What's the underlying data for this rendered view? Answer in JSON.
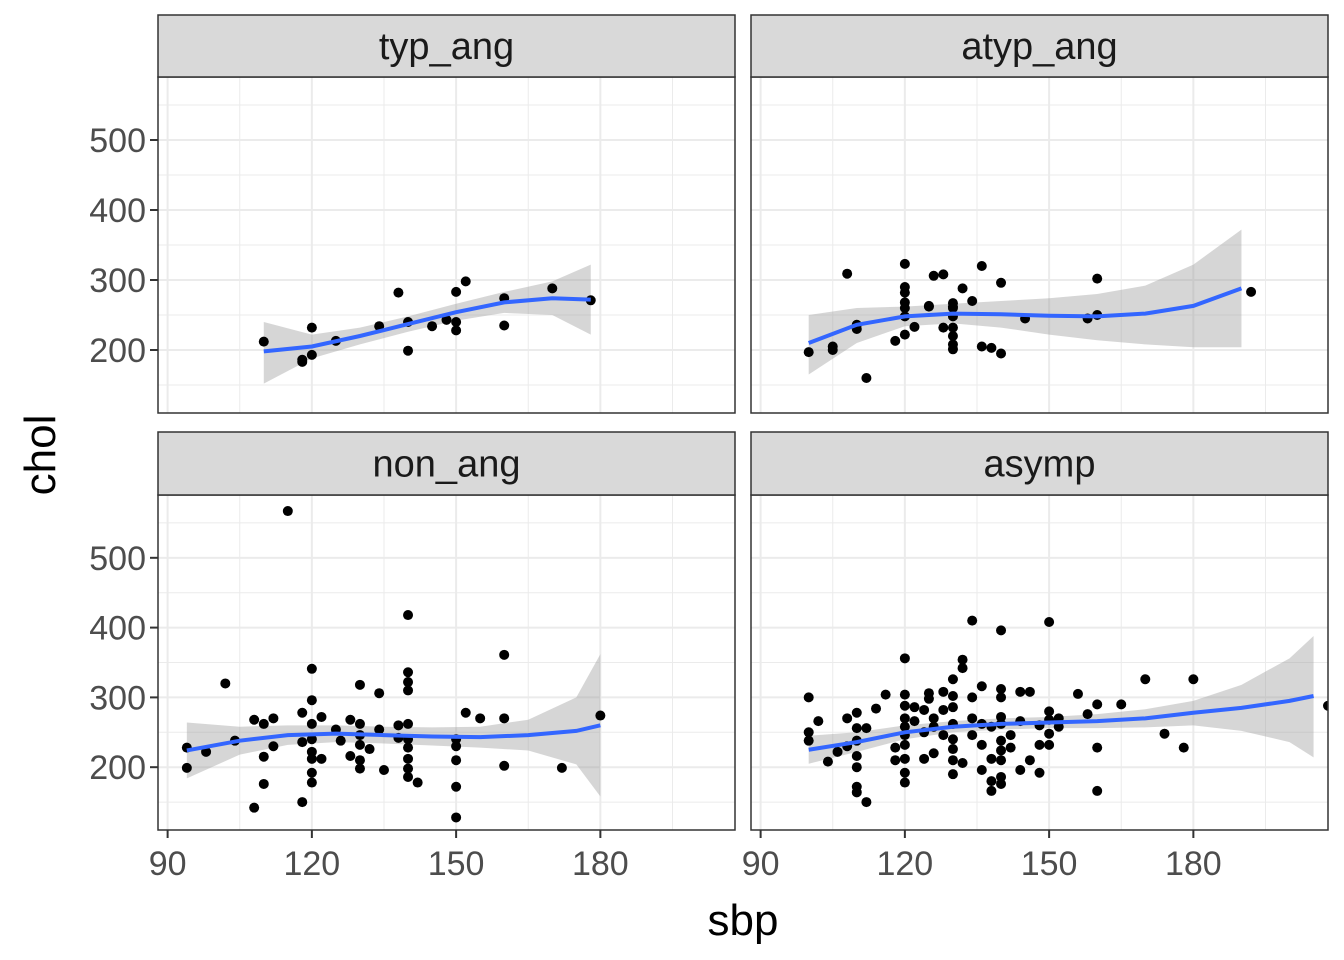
{
  "chart_data": {
    "type": "scatter",
    "xlabel": "sbp",
    "ylabel": "chol",
    "xlim": [
      88,
      208
    ],
    "ylim": [
      110,
      590
    ],
    "x_ticks": [
      "90",
      "120",
      "150",
      "180"
    ],
    "y_ticks": [
      "200",
      "300",
      "400",
      "500"
    ],
    "grid": true,
    "smoother": "loess with confidence band",
    "colors": {
      "points": "#000000",
      "smooth_line": "#3366FF",
      "band": "#999999",
      "strip": "#D9D9D9",
      "grid": "#EBEBEB"
    },
    "panels": [
      {
        "label": "typ_ang",
        "points": [
          [
            110,
            212
          ],
          [
            118,
            183
          ],
          [
            118,
            186
          ],
          [
            120,
            232
          ],
          [
            120,
            193
          ],
          [
            125,
            213
          ],
          [
            134,
            234
          ],
          [
            138,
            282
          ],
          [
            140,
            240
          ],
          [
            140,
            199
          ],
          [
            145,
            234
          ],
          [
            148,
            243
          ],
          [
            150,
            283
          ],
          [
            150,
            228
          ],
          [
            150,
            240
          ],
          [
            152,
            298
          ],
          [
            160,
            274
          ],
          [
            160,
            235
          ],
          [
            170,
            288
          ],
          [
            178,
            271
          ]
        ],
        "smooth": [
          [
            110,
            198
          ],
          [
            120,
            205
          ],
          [
            130,
            220
          ],
          [
            140,
            237
          ],
          [
            150,
            254
          ],
          [
            160,
            268
          ],
          [
            170,
            274
          ],
          [
            178,
            272
          ]
        ],
        "band": [
          [
            110,
            240,
            152
          ],
          [
            120,
            222,
            188
          ],
          [
            130,
            232,
            208
          ],
          [
            140,
            248,
            226
          ],
          [
            150,
            266,
            242
          ],
          [
            160,
            283,
            253
          ],
          [
            170,
            298,
            250
          ],
          [
            178,
            322,
            222
          ]
        ]
      },
      {
        "label": "atyp_ang",
        "points": [
          [
            100,
            197
          ],
          [
            105,
            200
          ],
          [
            105,
            205
          ],
          [
            108,
            309
          ],
          [
            110,
            230
          ],
          [
            110,
            236
          ],
          [
            112,
            160
          ],
          [
            118,
            213
          ],
          [
            120,
            323
          ],
          [
            120,
            290
          ],
          [
            120,
            282
          ],
          [
            120,
            268
          ],
          [
            120,
            260
          ],
          [
            120,
            248
          ],
          [
            120,
            222
          ],
          [
            122,
            233
          ],
          [
            125,
            262
          ],
          [
            125,
            263
          ],
          [
            126,
            306
          ],
          [
            128,
            308
          ],
          [
            128,
            232
          ],
          [
            130,
            267
          ],
          [
            130,
            262
          ],
          [
            130,
            260
          ],
          [
            130,
            248
          ],
          [
            130,
            232
          ],
          [
            130,
            220
          ],
          [
            130,
            208
          ],
          [
            130,
            201
          ],
          [
            132,
            288
          ],
          [
            134,
            270
          ],
          [
            136,
            320
          ],
          [
            136,
            205
          ],
          [
            138,
            203
          ],
          [
            140,
            296
          ],
          [
            140,
            195
          ],
          [
            145,
            245
          ],
          [
            158,
            245
          ],
          [
            160,
            302
          ],
          [
            160,
            250
          ],
          [
            192,
            283
          ]
        ],
        "smooth": [
          [
            100,
            210
          ],
          [
            110,
            236
          ],
          [
            120,
            248
          ],
          [
            130,
            252
          ],
          [
            140,
            251
          ],
          [
            150,
            249
          ],
          [
            160,
            248
          ],
          [
            170,
            252
          ],
          [
            180,
            263
          ],
          [
            190,
            288
          ]
        ],
        "band": [
          [
            100,
            250,
            165
          ],
          [
            110,
            260,
            210
          ],
          [
            120,
            262,
            234
          ],
          [
            130,
            266,
            238
          ],
          [
            140,
            270,
            232
          ],
          [
            150,
            274,
            222
          ],
          [
            160,
            280,
            214
          ],
          [
            170,
            292,
            208
          ],
          [
            180,
            322,
            204
          ],
          [
            190,
            372,
            204
          ]
        ]
      },
      {
        "label": "non_ang",
        "points": [
          [
            94,
            228
          ],
          [
            94,
            199
          ],
          [
            98,
            222
          ],
          [
            102,
            320
          ],
          [
            104,
            238
          ],
          [
            108,
            142
          ],
          [
            108,
            268
          ],
          [
            110,
            176
          ],
          [
            110,
            215
          ],
          [
            110,
            262
          ],
          [
            112,
            270
          ],
          [
            112,
            230
          ],
          [
            115,
            567
          ],
          [
            118,
            278
          ],
          [
            118,
            150
          ],
          [
            118,
            236
          ],
          [
            120,
            341
          ],
          [
            120,
            296
          ],
          [
            120,
            262
          ],
          [
            120,
            240
          ],
          [
            120,
            222
          ],
          [
            120,
            212
          ],
          [
            120,
            192
          ],
          [
            120,
            178
          ],
          [
            122,
            272
          ],
          [
            122,
            212
          ],
          [
            125,
            254
          ],
          [
            126,
            238
          ],
          [
            128,
            268
          ],
          [
            128,
            216
          ],
          [
            130,
            318
          ],
          [
            130,
            262
          ],
          [
            130,
            246
          ],
          [
            130,
            232
          ],
          [
            130,
            210
          ],
          [
            130,
            198
          ],
          [
            132,
            226
          ],
          [
            134,
            306
          ],
          [
            134,
            254
          ],
          [
            135,
            196
          ],
          [
            138,
            260
          ],
          [
            138,
            242
          ],
          [
            140,
            418
          ],
          [
            140,
            336
          ],
          [
            140,
            322
          ],
          [
            140,
            310
          ],
          [
            140,
            262
          ],
          [
            140,
            240
          ],
          [
            140,
            228
          ],
          [
            140,
            212
          ],
          [
            140,
            198
          ],
          [
            140,
            186
          ],
          [
            142,
            178
          ],
          [
            150,
            240
          ],
          [
            150,
            230
          ],
          [
            150,
            210
          ],
          [
            150,
            172
          ],
          [
            150,
            128
          ],
          [
            152,
            278
          ],
          [
            155,
            270
          ],
          [
            160,
            361
          ],
          [
            160,
            270
          ],
          [
            160,
            202
          ],
          [
            172,
            199
          ],
          [
            180,
            274
          ]
        ],
        "smooth": [
          [
            94,
            224
          ],
          [
            105,
            238
          ],
          [
            115,
            246
          ],
          [
            125,
            248
          ],
          [
            135,
            246
          ],
          [
            145,
            244
          ],
          [
            155,
            243
          ],
          [
            165,
            246
          ],
          [
            175,
            252
          ],
          [
            180,
            260
          ]
        ],
        "band": [
          [
            94,
            264,
            184
          ],
          [
            105,
            258,
            218
          ],
          [
            115,
            260,
            232
          ],
          [
            125,
            260,
            236
          ],
          [
            135,
            258,
            234
          ],
          [
            145,
            257,
            231
          ],
          [
            155,
            258,
            228
          ],
          [
            165,
            268,
            224
          ],
          [
            175,
            300,
            204
          ],
          [
            180,
            362,
            158
          ]
        ]
      },
      {
        "label": "asymp",
        "points": [
          [
            100,
            300
          ],
          [
            100,
            250
          ],
          [
            100,
            238
          ],
          [
            102,
            266
          ],
          [
            104,
            208
          ],
          [
            106,
            222
          ],
          [
            108,
            270
          ],
          [
            108,
            230
          ],
          [
            110,
            278
          ],
          [
            110,
            256
          ],
          [
            110,
            238
          ],
          [
            110,
            216
          ],
          [
            110,
            200
          ],
          [
            110,
            172
          ],
          [
            110,
            164
          ],
          [
            112,
            150
          ],
          [
            112,
            256
          ],
          [
            114,
            284
          ],
          [
            116,
            304
          ],
          [
            118,
            228
          ],
          [
            118,
            210
          ],
          [
            120,
            356
          ],
          [
            120,
            304
          ],
          [
            120,
            288
          ],
          [
            120,
            270
          ],
          [
            120,
            258
          ],
          [
            120,
            246
          ],
          [
            120,
            232
          ],
          [
            120,
            212
          ],
          [
            120,
            192
          ],
          [
            120,
            178
          ],
          [
            122,
            286
          ],
          [
            122,
            266
          ],
          [
            124,
            282
          ],
          [
            124,
            250
          ],
          [
            124,
            212
          ],
          [
            125,
            306
          ],
          [
            125,
            298
          ],
          [
            126,
            270
          ],
          [
            126,
            258
          ],
          [
            126,
            220
          ],
          [
            128,
            308
          ],
          [
            128,
            282
          ],
          [
            128,
            246
          ],
          [
            130,
            326
          ],
          [
            130,
            302
          ],
          [
            130,
            286
          ],
          [
            130,
            262
          ],
          [
            130,
            240
          ],
          [
            130,
            226
          ],
          [
            130,
            210
          ],
          [
            130,
            190
          ],
          [
            132,
            354
          ],
          [
            132,
            342
          ],
          [
            132,
            206
          ],
          [
            134,
            410
          ],
          [
            134,
            300
          ],
          [
            134,
            270
          ],
          [
            134,
            246
          ],
          [
            136,
            316
          ],
          [
            136,
            262
          ],
          [
            136,
            232
          ],
          [
            136,
            196
          ],
          [
            138,
            258
          ],
          [
            138,
            212
          ],
          [
            138,
            180
          ],
          [
            138,
            166
          ],
          [
            140,
            396
          ],
          [
            140,
            312
          ],
          [
            140,
            300
          ],
          [
            140,
            272
          ],
          [
            140,
            262
          ],
          [
            140,
            238
          ],
          [
            140,
            224
          ],
          [
            140,
            210
          ],
          [
            140,
            186
          ],
          [
            140,
            176
          ],
          [
            142,
            246
          ],
          [
            142,
            228
          ],
          [
            144,
            308
          ],
          [
            144,
            266
          ],
          [
            144,
            196
          ],
          [
            146,
            308
          ],
          [
            146,
            210
          ],
          [
            148,
            260
          ],
          [
            148,
            232
          ],
          [
            148,
            192
          ],
          [
            150,
            408
          ],
          [
            150,
            280
          ],
          [
            150,
            268
          ],
          [
            150,
            248
          ],
          [
            150,
            232
          ],
          [
            152,
            270
          ],
          [
            152,
            258
          ],
          [
            156,
            305
          ],
          [
            158,
            276
          ],
          [
            160,
            290
          ],
          [
            160,
            228
          ],
          [
            160,
            166
          ],
          [
            165,
            290
          ],
          [
            170,
            326
          ],
          [
            174,
            248
          ],
          [
            178,
            228
          ],
          [
            180,
            326
          ],
          [
            208,
            288
          ]
        ],
        "smooth": [
          [
            100,
            225
          ],
          [
            110,
            236
          ],
          [
            120,
            250
          ],
          [
            130,
            258
          ],
          [
            140,
            262
          ],
          [
            150,
            264
          ],
          [
            160,
            266
          ],
          [
            170,
            270
          ],
          [
            180,
            278
          ],
          [
            190,
            285
          ],
          [
            200,
            295
          ],
          [
            205,
            302
          ]
        ],
        "band": [
          [
            100,
            245,
            205
          ],
          [
            110,
            250,
            222
          ],
          [
            120,
            260,
            240
          ],
          [
            130,
            266,
            250
          ],
          [
            140,
            270,
            254
          ],
          [
            150,
            272,
            256
          ],
          [
            160,
            276,
            256
          ],
          [
            170,
            283,
            257
          ],
          [
            180,
            295,
            260
          ],
          [
            190,
            318,
            252
          ],
          [
            200,
            356,
            236
          ],
          [
            205,
            388,
            214
          ]
        ]
      }
    ]
  }
}
